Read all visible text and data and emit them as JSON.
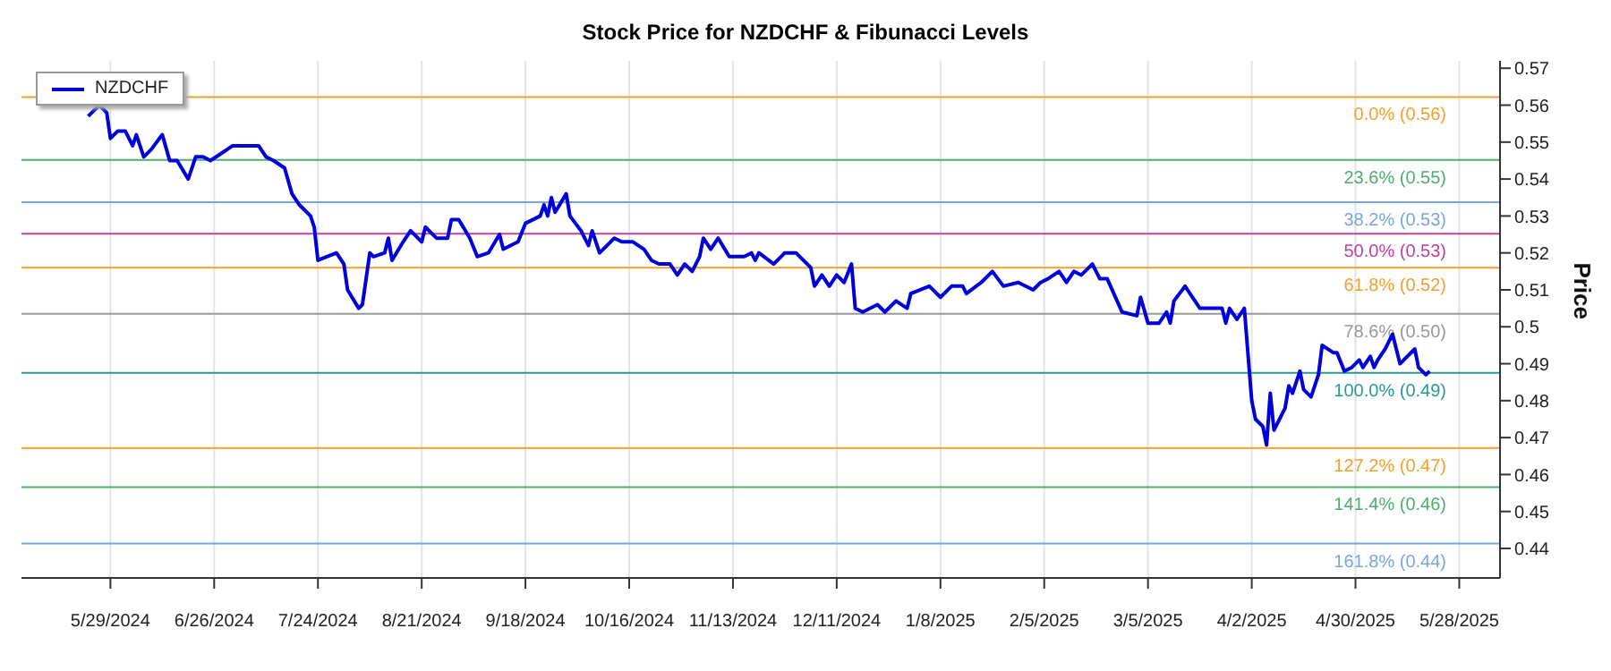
{
  "chart_data": {
    "type": "line",
    "title": "Stock Price for NZDCHF & Fibunacci Levels",
    "ylabel": "Price",
    "xlim": [
      "2024-05-05",
      "2025-06-08"
    ],
    "ylim": [
      0.432,
      0.572
    ],
    "xticks": [
      {
        "value": "2024-05-29",
        "label": "5/29/2024"
      },
      {
        "value": "2024-06-26",
        "label": "6/26/2024"
      },
      {
        "value": "2024-07-24",
        "label": "7/24/2024"
      },
      {
        "value": "2024-08-21",
        "label": "8/21/2024"
      },
      {
        "value": "2024-09-18",
        "label": "9/18/2024"
      },
      {
        "value": "2024-10-16",
        "label": "10/16/2024"
      },
      {
        "value": "2024-11-13",
        "label": "11/13/2024"
      },
      {
        "value": "2024-12-11",
        "label": "12/11/2024"
      },
      {
        "value": "2025-01-08",
        "label": "1/8/2025"
      },
      {
        "value": "2025-02-05",
        "label": "2/5/2025"
      },
      {
        "value": "2025-03-05",
        "label": "3/5/2025"
      },
      {
        "value": "2025-04-02",
        "label": "4/2/2025"
      },
      {
        "value": "2025-04-30",
        "label": "4/30/2025"
      },
      {
        "value": "2025-05-28",
        "label": "5/28/2025"
      }
    ],
    "yticks": [
      0.44,
      0.45,
      0.46,
      0.47,
      0.48,
      0.49,
      0.5,
      0.51,
      0.52,
      0.53,
      0.54,
      0.55,
      0.56,
      0.57
    ],
    "grid": "x",
    "legend": "top left",
    "x": [
      "2024-05-23",
      "2024-05-26",
      "2024-05-28",
      "2024-05-29",
      "2024-05-31",
      "2024-06-02",
      "2024-06-04",
      "2024-06-05",
      "2024-06-07",
      "2024-06-09",
      "2024-06-12",
      "2024-06-14",
      "2024-06-16",
      "2024-06-19",
      "2024-06-21",
      "2024-06-23",
      "2024-06-25",
      "2024-06-28",
      "2024-07-01",
      "2024-07-04",
      "2024-07-08",
      "2024-07-10",
      "2024-07-12",
      "2024-07-15",
      "2024-07-17",
      "2024-07-19",
      "2024-07-22",
      "2024-07-23",
      "2024-07-24",
      "2024-07-29",
      "2024-07-31",
      "2024-08-01",
      "2024-08-04",
      "2024-08-05",
      "2024-08-07",
      "2024-08-08",
      "2024-08-11",
      "2024-08-12",
      "2024-08-13",
      "2024-08-16",
      "2024-08-18",
      "2024-08-21",
      "2024-08-22",
      "2024-08-25",
      "2024-08-28",
      "2024-08-29",
      "2024-08-31",
      "2024-09-03",
      "2024-09-05",
      "2024-09-08",
      "2024-09-11",
      "2024-09-12",
      "2024-09-16",
      "2024-09-18",
      "2024-09-22",
      "2024-09-23",
      "2024-09-24",
      "2024-09-25",
      "2024-09-26",
      "2024-09-29",
      "2024-09-30",
      "2024-10-03",
      "2024-10-05",
      "2024-10-06",
      "2024-10-08",
      "2024-10-12",
      "2024-10-14",
      "2024-10-17",
      "2024-10-20",
      "2024-10-22",
      "2024-10-24",
      "2024-10-27",
      "2024-10-29",
      "2024-10-31",
      "2024-11-02",
      "2024-11-04",
      "2024-11-05",
      "2024-11-07",
      "2024-11-09",
      "2024-11-12",
      "2024-11-16",
      "2024-11-18",
      "2024-11-19",
      "2024-11-20",
      "2024-11-24",
      "2024-11-27",
      "2024-11-30",
      "2024-12-04",
      "2024-12-05",
      "2024-12-07",
      "2024-12-09",
      "2024-12-11",
      "2024-12-13",
      "2024-12-15",
      "2024-12-16",
      "2024-12-18",
      "2024-12-22",
      "2024-12-24",
      "2024-12-27",
      "2024-12-30",
      "2024-12-31",
      "2025-01-05",
      "2025-01-08",
      "2025-01-11",
      "2025-01-14",
      "2025-01-15",
      "2025-01-19",
      "2025-01-22",
      "2025-01-25",
      "2025-01-29",
      "2025-02-02",
      "2025-02-04",
      "2025-02-06",
      "2025-02-09",
      "2025-02-11",
      "2025-02-13",
      "2025-02-15",
      "2025-02-18",
      "2025-02-20",
      "2025-02-22",
      "2025-02-26",
      "2025-03-02",
      "2025-03-03",
      "2025-03-05",
      "2025-03-08",
      "2025-03-10",
      "2025-03-11",
      "2025-03-12",
      "2025-03-15",
      "2025-03-19",
      "2025-03-25",
      "2025-03-26",
      "2025-03-27",
      "2025-03-29",
      "2025-03-31",
      "2025-04-02",
      "2025-04-03",
      "2025-04-05",
      "2025-04-06",
      "2025-04-07",
      "2025-04-08",
      "2025-04-11",
      "2025-04-12",
      "2025-04-13",
      "2025-04-15",
      "2025-04-16",
      "2025-04-18",
      "2025-04-20",
      "2025-04-21",
      "2025-04-24",
      "2025-04-25",
      "2025-04-27",
      "2025-04-29",
      "2025-05-01",
      "2025-05-02",
      "2025-05-04",
      "2025-05-05",
      "2025-05-06",
      "2025-05-08",
      "2025-05-10",
      "2025-05-12",
      "2025-05-16",
      "2025-05-17",
      "2025-05-19",
      "2025-05-20"
    ],
    "series": [
      {
        "name": "NZDCHF",
        "color": "#0000dd",
        "values": [
          0.557,
          0.56,
          0.558,
          0.551,
          0.553,
          0.553,
          0.549,
          0.552,
          0.546,
          0.548,
          0.552,
          0.545,
          0.545,
          0.54,
          0.546,
          0.546,
          0.545,
          0.547,
          0.549,
          0.549,
          0.549,
          0.546,
          0.545,
          0.543,
          0.536,
          0.533,
          0.53,
          0.527,
          0.518,
          0.52,
          0.517,
          0.51,
          0.505,
          0.506,
          0.52,
          0.519,
          0.52,
          0.524,
          0.518,
          0.523,
          0.526,
          0.523,
          0.527,
          0.524,
          0.524,
          0.529,
          0.529,
          0.524,
          0.519,
          0.52,
          0.525,
          0.521,
          0.523,
          0.528,
          0.53,
          0.533,
          0.53,
          0.535,
          0.531,
          0.536,
          0.53,
          0.526,
          0.522,
          0.526,
          0.52,
          0.524,
          0.523,
          0.523,
          0.521,
          0.518,
          0.517,
          0.517,
          0.514,
          0.517,
          0.515,
          0.519,
          0.524,
          0.521,
          0.524,
          0.519,
          0.519,
          0.52,
          0.518,
          0.52,
          0.517,
          0.52,
          0.52,
          0.516,
          0.511,
          0.514,
          0.511,
          0.514,
          0.512,
          0.517,
          0.505,
          0.504,
          0.506,
          0.504,
          0.507,
          0.505,
          0.509,
          0.511,
          0.508,
          0.511,
          0.511,
          0.509,
          0.512,
          0.515,
          0.511,
          0.512,
          0.51,
          0.512,
          0.513,
          0.515,
          0.512,
          0.515,
          0.514,
          0.517,
          0.513,
          0.513,
          0.504,
          0.503,
          0.508,
          0.501,
          0.501,
          0.504,
          0.501,
          0.507,
          0.511,
          0.505,
          0.505,
          0.501,
          0.505,
          0.502,
          0.505,
          0.48,
          0.475,
          0.473,
          0.468,
          0.482,
          0.472,
          0.478,
          0.484,
          0.482,
          0.488,
          0.483,
          0.481,
          0.487,
          0.495,
          0.493,
          0.493,
          0.488,
          0.489,
          0.491,
          0.489,
          0.492,
          0.489,
          0.491,
          0.494,
          0.498,
          0.49,
          0.494,
          0.489,
          0.487,
          0.488
        ]
      }
    ],
    "ref_lines": [
      {
        "axis": "y",
        "value": 0.5622,
        "label": "0.0% (0.56)",
        "color": "#f0a030"
      },
      {
        "axis": "y",
        "value": 0.5452,
        "label": "23.6% (0.55)",
        "color": "#4fae6e"
      },
      {
        "axis": "y",
        "value": 0.5337,
        "label": "38.2% (0.53)",
        "color": "#7aa6e0"
      },
      {
        "axis": "y",
        "value": 0.5252,
        "label": "50.0% (0.53)",
        "color": "#c040a0"
      },
      {
        "axis": "y",
        "value": 0.516,
        "label": "61.8% (0.52)",
        "color": "#f0a030"
      },
      {
        "axis": "y",
        "value": 0.5035,
        "label": "78.6% (0.50)",
        "color": "#999999"
      },
      {
        "axis": "y",
        "value": 0.4875,
        "label": "100.0% (0.49)",
        "color": "#2a9898"
      },
      {
        "axis": "y",
        "value": 0.4672,
        "label": "127.2% (0.47)",
        "color": "#f0a030"
      },
      {
        "axis": "y",
        "value": 0.4566,
        "label": "141.4% (0.46)",
        "color": "#4fae6e"
      },
      {
        "axis": "y",
        "value": 0.4413,
        "label": "161.8% (0.44)",
        "color": "#7aa6e0"
      }
    ]
  }
}
